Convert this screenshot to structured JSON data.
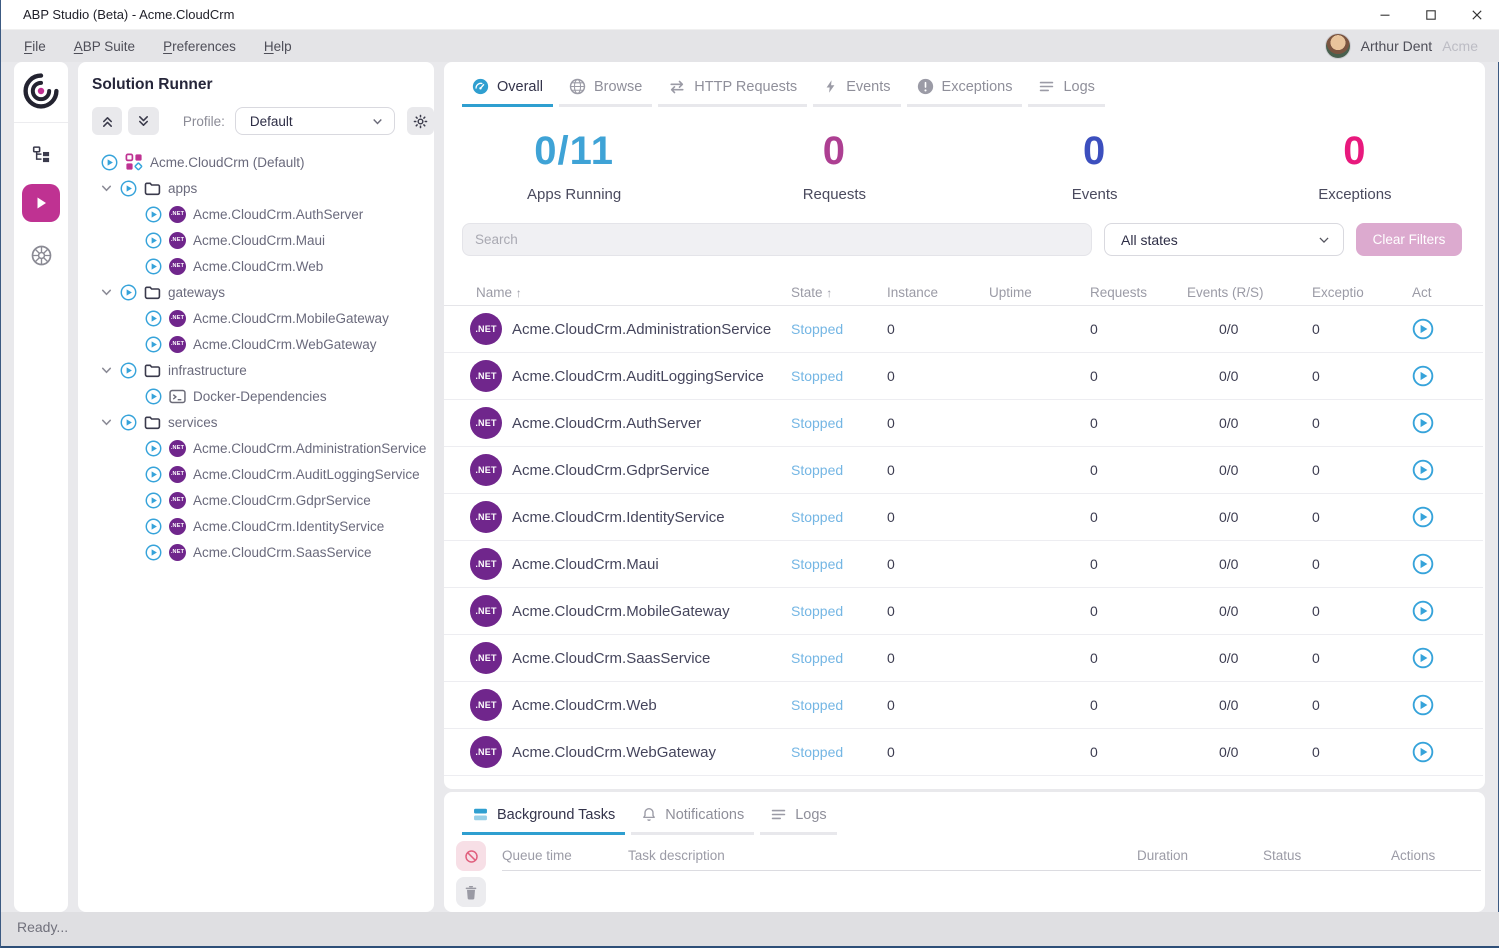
{
  "window": {
    "title": "ABP Studio (Beta) - Acme.CloudCrm",
    "controls": {
      "minimize": "—",
      "maximize": "☐",
      "close": "✕"
    }
  },
  "menu": {
    "items": [
      {
        "label": "File"
      },
      {
        "label": "ABP Suite"
      },
      {
        "label": "Preferences"
      },
      {
        "label": "Help"
      }
    ],
    "user": {
      "name": "Arthur Dent",
      "org": "Acme"
    }
  },
  "rail": {
    "icons": [
      "abp-logo",
      "solution-explorer",
      "solution-runner-active",
      "kubernetes"
    ]
  },
  "solution_runner": {
    "title": "Solution Runner",
    "profile_label": "Profile:",
    "profile_value": "Default",
    "tree": [
      {
        "label": "Acme.CloudCrm (Default)",
        "kind": "solution",
        "depth": 0
      },
      {
        "label": "apps",
        "kind": "folder",
        "depth": 1
      },
      {
        "label": "Acme.CloudCrm.AuthServer",
        "kind": "app",
        "depth": 2
      },
      {
        "label": "Acme.CloudCrm.Maui",
        "kind": "app",
        "depth": 2
      },
      {
        "label": "Acme.CloudCrm.Web",
        "kind": "app",
        "depth": 2
      },
      {
        "label": "gateways",
        "kind": "folder",
        "depth": 1
      },
      {
        "label": "Acme.CloudCrm.MobileGateway",
        "kind": "app",
        "depth": 2
      },
      {
        "label": "Acme.CloudCrm.WebGateway",
        "kind": "app",
        "depth": 2
      },
      {
        "label": "infrastructure",
        "kind": "folder",
        "depth": 1
      },
      {
        "label": "Docker-Dependencies",
        "kind": "docker",
        "depth": 2
      },
      {
        "label": "services",
        "kind": "folder",
        "depth": 1
      },
      {
        "label": "Acme.CloudCrm.AdministrationService",
        "kind": "app",
        "depth": 2
      },
      {
        "label": "Acme.CloudCrm.AuditLoggingService",
        "kind": "app",
        "depth": 2
      },
      {
        "label": "Acme.CloudCrm.GdprService",
        "kind": "app",
        "depth": 2
      },
      {
        "label": "Acme.CloudCrm.IdentityService",
        "kind": "app",
        "depth": 2
      },
      {
        "label": "Acme.CloudCrm.SaasService",
        "kind": "app",
        "depth": 2
      }
    ]
  },
  "main": {
    "tabs": [
      {
        "label": "Overall",
        "icon": "gauge-icon",
        "active": true
      },
      {
        "label": "Browse",
        "icon": "globe-icon",
        "active": false
      },
      {
        "label": "HTTP Requests",
        "icon": "arrows-icon",
        "active": false
      },
      {
        "label": "Events",
        "icon": "bolt-icon",
        "active": false
      },
      {
        "label": "Exceptions",
        "icon": "exclamation-icon",
        "active": false
      },
      {
        "label": "Logs",
        "icon": "lines-icon",
        "active": false
      }
    ],
    "stats": [
      {
        "value": "0/11",
        "label": "Apps Running",
        "color": "#3fa3d6"
      },
      {
        "value": "0",
        "label": "Requests",
        "color": "#ad3f92"
      },
      {
        "value": "0",
        "label": "Events",
        "color": "#3c4fbe"
      },
      {
        "value": "0",
        "label": "Exceptions",
        "color": "#e8197d"
      }
    ],
    "search_placeholder": "Search",
    "state_filter_value": "All states",
    "clear_filters_label": "Clear Filters",
    "table": {
      "columns": [
        "Name",
        "State",
        "Instance",
        "Uptime",
        "Requests",
        "Events (R/S)",
        "Exceptio",
        "Act"
      ],
      "sorted_columns": [
        "Name",
        "State"
      ],
      "rows": [
        {
          "name": "Acme.CloudCrm.AdministrationService",
          "state": "Stopped",
          "instance": "0",
          "uptime": "",
          "requests": "0",
          "events": "0/0",
          "exceptions": "0"
        },
        {
          "name": "Acme.CloudCrm.AuditLoggingService",
          "state": "Stopped",
          "instance": "0",
          "uptime": "",
          "requests": "0",
          "events": "0/0",
          "exceptions": "0"
        },
        {
          "name": "Acme.CloudCrm.AuthServer",
          "state": "Stopped",
          "instance": "0",
          "uptime": "",
          "requests": "0",
          "events": "0/0",
          "exceptions": "0"
        },
        {
          "name": "Acme.CloudCrm.GdprService",
          "state": "Stopped",
          "instance": "0",
          "uptime": "",
          "requests": "0",
          "events": "0/0",
          "exceptions": "0"
        },
        {
          "name": "Acme.CloudCrm.IdentityService",
          "state": "Stopped",
          "instance": "0",
          "uptime": "",
          "requests": "0",
          "events": "0/0",
          "exceptions": "0"
        },
        {
          "name": "Acme.CloudCrm.Maui",
          "state": "Stopped",
          "instance": "0",
          "uptime": "",
          "requests": "0",
          "events": "0/0",
          "exceptions": "0"
        },
        {
          "name": "Acme.CloudCrm.MobileGateway",
          "state": "Stopped",
          "instance": "0",
          "uptime": "",
          "requests": "0",
          "events": "0/0",
          "exceptions": "0"
        },
        {
          "name": "Acme.CloudCrm.SaasService",
          "state": "Stopped",
          "instance": "0",
          "uptime": "",
          "requests": "0",
          "events": "0/0",
          "exceptions": "0"
        },
        {
          "name": "Acme.CloudCrm.Web",
          "state": "Stopped",
          "instance": "0",
          "uptime": "",
          "requests": "0",
          "events": "0/0",
          "exceptions": "0"
        },
        {
          "name": "Acme.CloudCrm.WebGateway",
          "state": "Stopped",
          "instance": "0",
          "uptime": "",
          "requests": "0",
          "events": "0/0",
          "exceptions": "0"
        }
      ]
    }
  },
  "bottom_panel": {
    "tabs": [
      {
        "label": "Background Tasks",
        "icon": "stack-icon",
        "active": true
      },
      {
        "label": "Notifications",
        "icon": "bell-icon",
        "active": false
      },
      {
        "label": "Logs",
        "icon": "lines-icon",
        "active": false
      }
    ],
    "columns": [
      "Queue time",
      "Task description",
      "Duration",
      "Status",
      "Actions"
    ]
  },
  "statusbar": {
    "text": "Ready..."
  },
  "colors": {
    "accent_blue": "#2f9fd0",
    "accent_magenta": "#bf3292",
    "net_purple": "#70268c",
    "stopped_blue": "#74b6e4",
    "stat_blue": "#3fa3d6",
    "stat_purple": "#ad3f92",
    "stat_indigo": "#3c4fbe",
    "stat_pink": "#e8197d"
  }
}
